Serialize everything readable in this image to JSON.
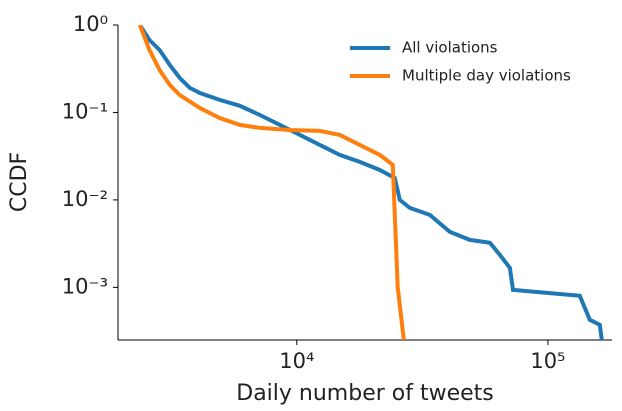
{
  "chart_data": {
    "type": "line",
    "xlabel": "Daily number of tweets",
    "ylabel": "CCDF",
    "xscale": "log",
    "yscale": "log",
    "xlim": [
      1940,
      180000
    ],
    "ylim": [
      0.00025,
      1
    ],
    "xticks": [
      {
        "value": 10000,
        "label": "10⁴"
      },
      {
        "value": 100000,
        "label": "10⁵"
      }
    ],
    "yticks": [
      {
        "value": 1,
        "label": "10⁰"
      },
      {
        "value": 0.1,
        "label": "10⁻¹"
      },
      {
        "value": 0.01,
        "label": "10⁻²"
      },
      {
        "value": 0.001,
        "label": "10⁻³"
      }
    ],
    "legend": "upper right",
    "series": [
      {
        "name": "All violations",
        "color": "#1f77b4",
        "x": [
          2370,
          2590,
          2840,
          3120,
          3420,
          3750,
          4110,
          4930,
          5930,
          7130,
          8560,
          10280,
          12350,
          14830,
          17820,
          21410,
          24570,
          25710,
          28180,
          33870,
          40700,
          48890,
          58740,
          64410,
          70600,
          72600,
          134000,
          146800,
          161000,
          165600
        ],
        "values": [
          1,
          0.674,
          0.518,
          0.349,
          0.248,
          0.191,
          0.167,
          0.139,
          0.119,
          0.0936,
          0.072,
          0.0553,
          0.0425,
          0.0327,
          0.0272,
          0.022,
          0.0178,
          0.01,
          0.0081,
          0.00674,
          0.00431,
          0.00349,
          0.00323,
          0.00235,
          0.00167,
          0.000936,
          0.0008,
          0.000425,
          0.000373,
          0.0002
        ]
      },
      {
        "name": "Multiple day violations",
        "color": "#ff7f0e",
        "x": [
          2370,
          2590,
          2840,
          3120,
          3420,
          4110,
          4930,
          5930,
          7130,
          9380,
          12350,
          14830,
          17820,
          21410,
          24120,
          25230,
          26920
        ],
        "values": [
          1,
          0.518,
          0.306,
          0.206,
          0.158,
          0.1125,
          0.0865,
          0.072,
          0.0665,
          0.063,
          0.0615,
          0.0553,
          0.0425,
          0.0327,
          0.0251,
          0.001,
          0.0002
        ]
      }
    ]
  }
}
